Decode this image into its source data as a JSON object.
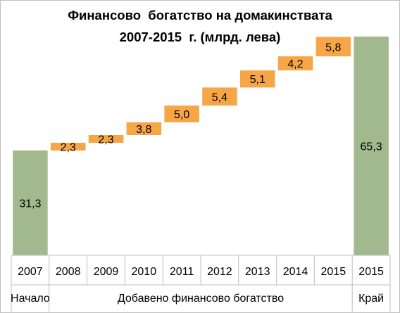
{
  "chart_data": {
    "type": "bar",
    "subtype": "waterfall",
    "title_lines": [
      "Финансово  богатство на домакинствата",
      "2007-2015  г. (млрд. лева)"
    ],
    "categories": [
      "2007",
      "2008",
      "2009",
      "2010",
      "2011",
      "2012",
      "2013",
      "2014",
      "2015",
      "2015"
    ],
    "values": [
      31.3,
      2.3,
      2.3,
      3.8,
      5.0,
      5.4,
      5.1,
      4.2,
      5.8,
      65.3
    ],
    "value_labels": [
      "31,3",
      "2,3",
      "2,3",
      "3,8",
      "5,0",
      "5,4",
      "5,1",
      "4,2",
      "5,8",
      "65,3"
    ],
    "kinds": [
      "total",
      "increase",
      "increase",
      "increase",
      "increase",
      "increase",
      "increase",
      "increase",
      "increase",
      "total"
    ],
    "groups": [
      {
        "label": "Начало",
        "from": 0,
        "to": 0
      },
      {
        "label": "Добавено финансово богатство",
        "from": 1,
        "to": 8
      },
      {
        "label": "Край",
        "from": 9,
        "to": 9
      }
    ],
    "colors": {
      "total": "#a2b98e",
      "increase": "#f6a646",
      "gridline": "#bfbfbf"
    },
    "ylim": [
      0,
      65.3
    ],
    "grid": false,
    "legend": "none",
    "xlabel": "",
    "ylabel": ""
  }
}
